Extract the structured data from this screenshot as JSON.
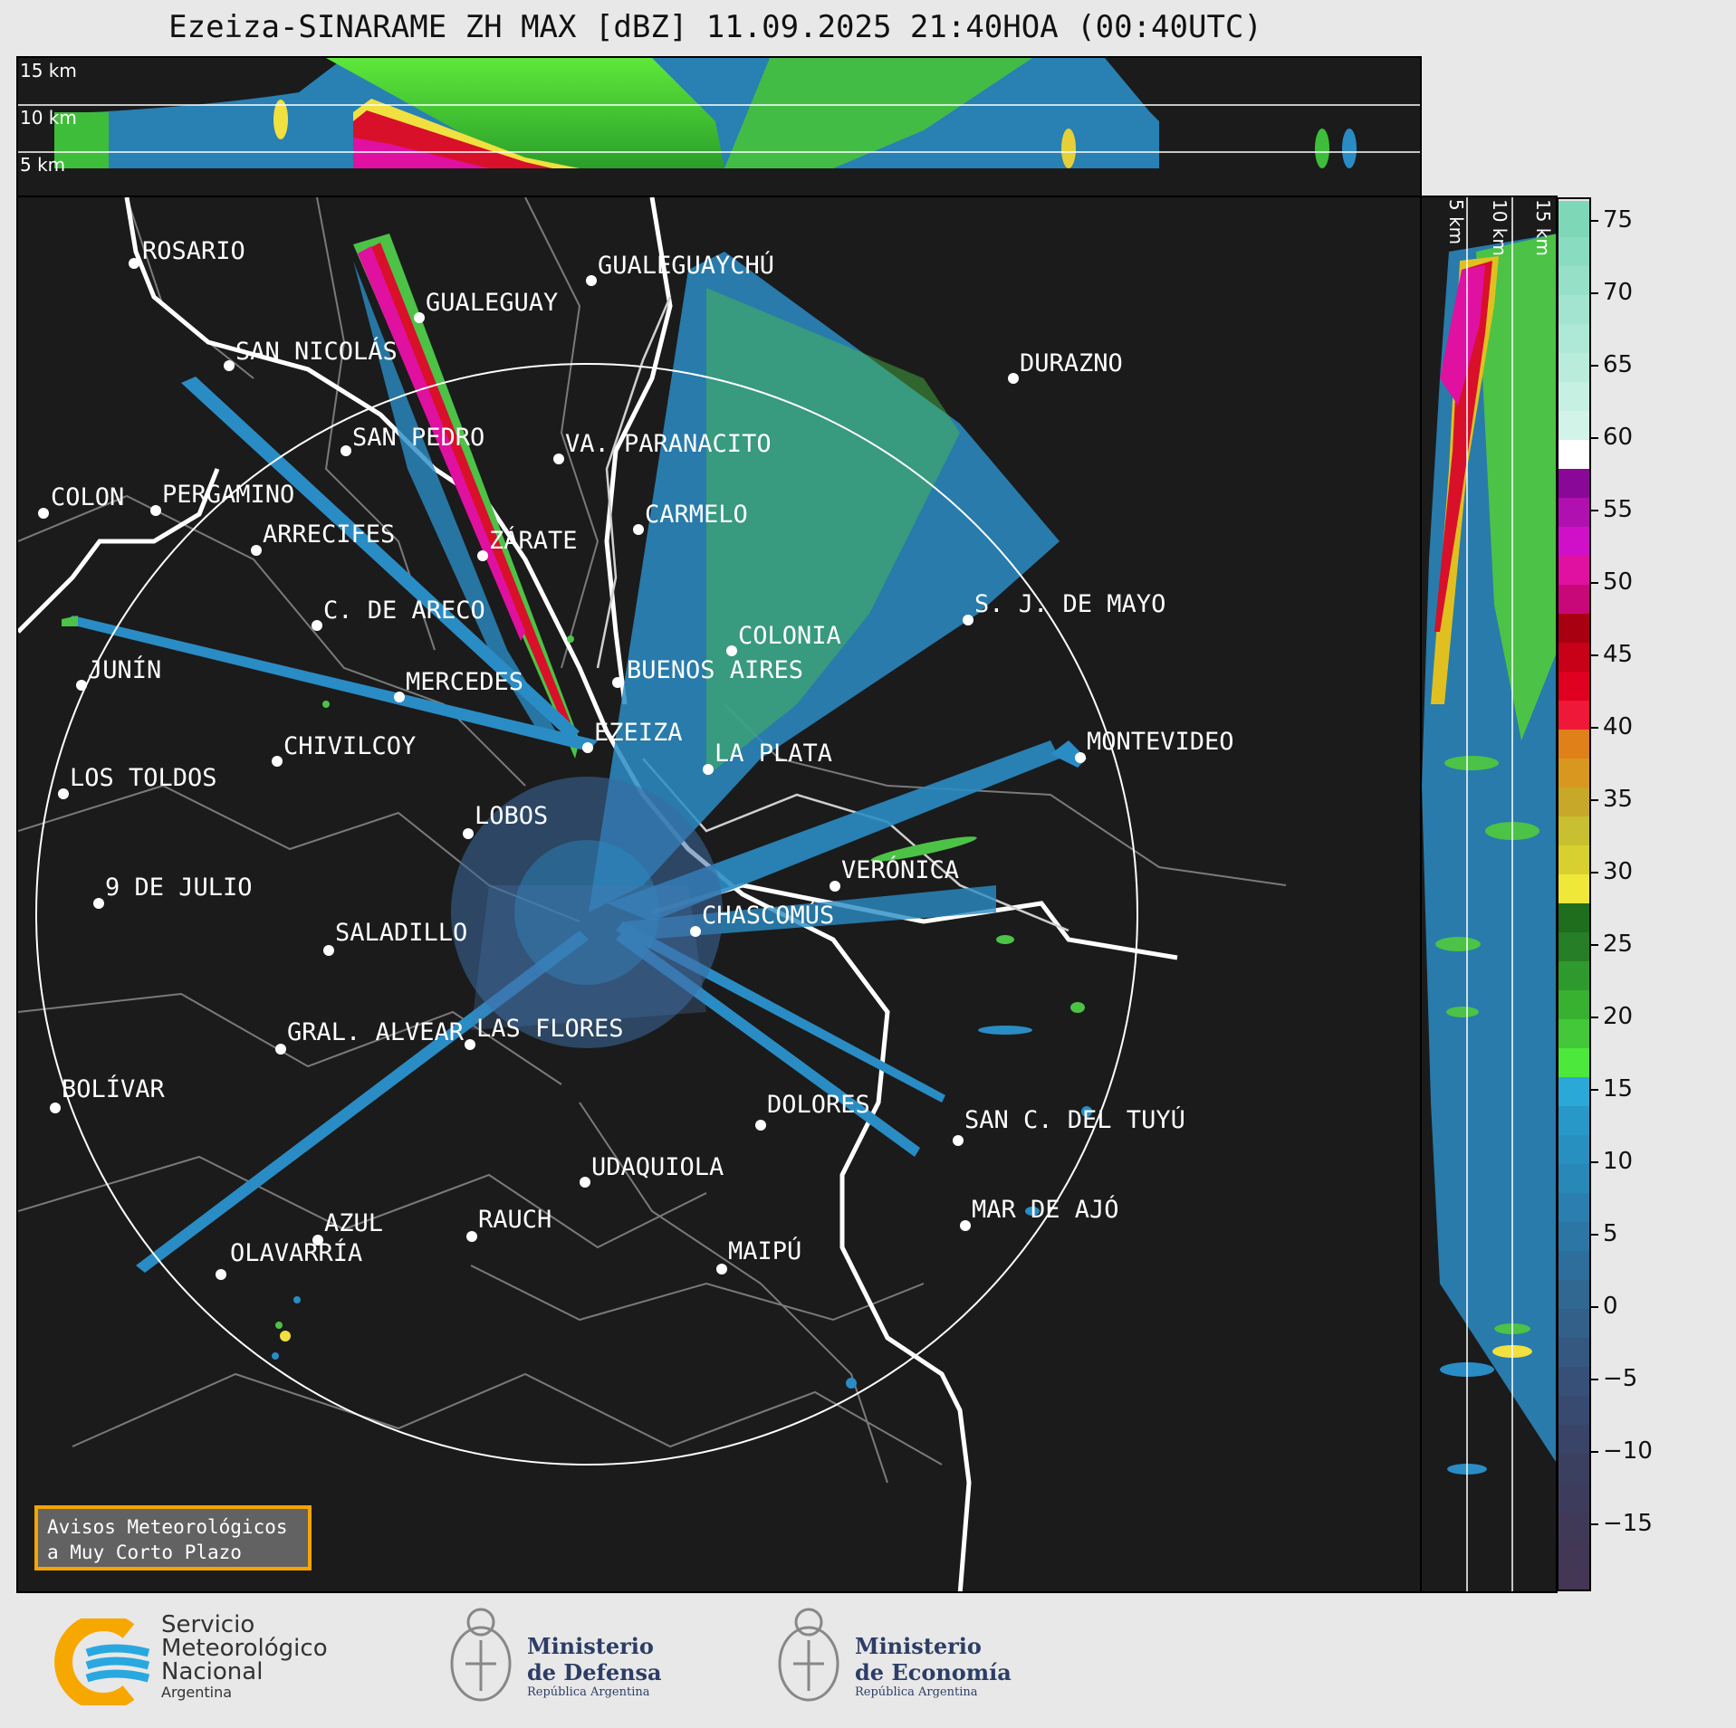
{
  "title": "Ezeiza-SINARAME ZH MAX [dBZ] 11.09.2025 21:40HOA (00:40UTC)",
  "height_labels": [
    "15 km",
    "10 km",
    "5 km"
  ],
  "cities": [
    {
      "name": "ROSARIO"
    },
    {
      "name": "GUALEGUAYCHÚ"
    },
    {
      "name": "GUALEGUAY"
    },
    {
      "name": "SAN NICOLÁS"
    },
    {
      "name": "DURAZNO"
    },
    {
      "name": "SAN PEDRO"
    },
    {
      "name": "VA. PARANACITO"
    },
    {
      "name": "COLON"
    },
    {
      "name": "PERGAMINO"
    },
    {
      "name": "CARMELO"
    },
    {
      "name": "ARRECIFES"
    },
    {
      "name": "ZÁRATE"
    },
    {
      "name": "S. J. DE MAYO"
    },
    {
      "name": "C. DE ARECO"
    },
    {
      "name": "COLONIA"
    },
    {
      "name": "JUNÍN"
    },
    {
      "name": "BUENOS AIRES"
    },
    {
      "name": "MERCEDES"
    },
    {
      "name": "EZEIZA"
    },
    {
      "name": "MONTEVIDEO"
    },
    {
      "name": "CHIVILCOY"
    },
    {
      "name": "LA PLATA"
    },
    {
      "name": "LOS TOLDOS"
    },
    {
      "name": "LOBOS"
    },
    {
      "name": "VERÓNICA"
    },
    {
      "name": "9 DE JULIO"
    },
    {
      "name": "CHASCOMÚS"
    },
    {
      "name": "SALADILLO"
    },
    {
      "name": "GRAL. ALVEAR"
    },
    {
      "name": "LAS FLORES"
    },
    {
      "name": "BOLÍVAR"
    },
    {
      "name": "DOLORES"
    },
    {
      "name": "SAN C. DEL TUYÚ"
    },
    {
      "name": "UDAQUIOLA"
    },
    {
      "name": "MAR DE AJÓ"
    },
    {
      "name": "RAUCH"
    },
    {
      "name": "AZUL"
    },
    {
      "name": "OLAVARRÍA"
    },
    {
      "name": "MAIPÚ"
    }
  ],
  "colorbar": {
    "unit": "dBZ",
    "ticks": [
      "75",
      "70",
      "65",
      "60",
      "55",
      "50",
      "45",
      "40",
      "35",
      "30",
      "25",
      "20",
      "15",
      "10",
      "5",
      "0",
      "−5",
      "−10",
      "−15"
    ],
    "min": -19.5,
    "max": 76.5
  },
  "aviso": {
    "line1": "Avisos Meteorológicos",
    "line2": "a Muy Corto Plazo"
  },
  "logos": {
    "smn": {
      "l1": "Servicio",
      "l2": "Meteorológico",
      "l3": "Nacional",
      "l4": "Argentina",
      "color_blue": "#29a8e0",
      "color_orange": "#f7a800"
    },
    "defensa": {
      "l1": "Ministerio",
      "l2": "de Defensa",
      "l3": "República Argentina"
    },
    "economia": {
      "l1": "Ministerio",
      "l2": "de Economía",
      "l3": "República Argentina"
    }
  }
}
